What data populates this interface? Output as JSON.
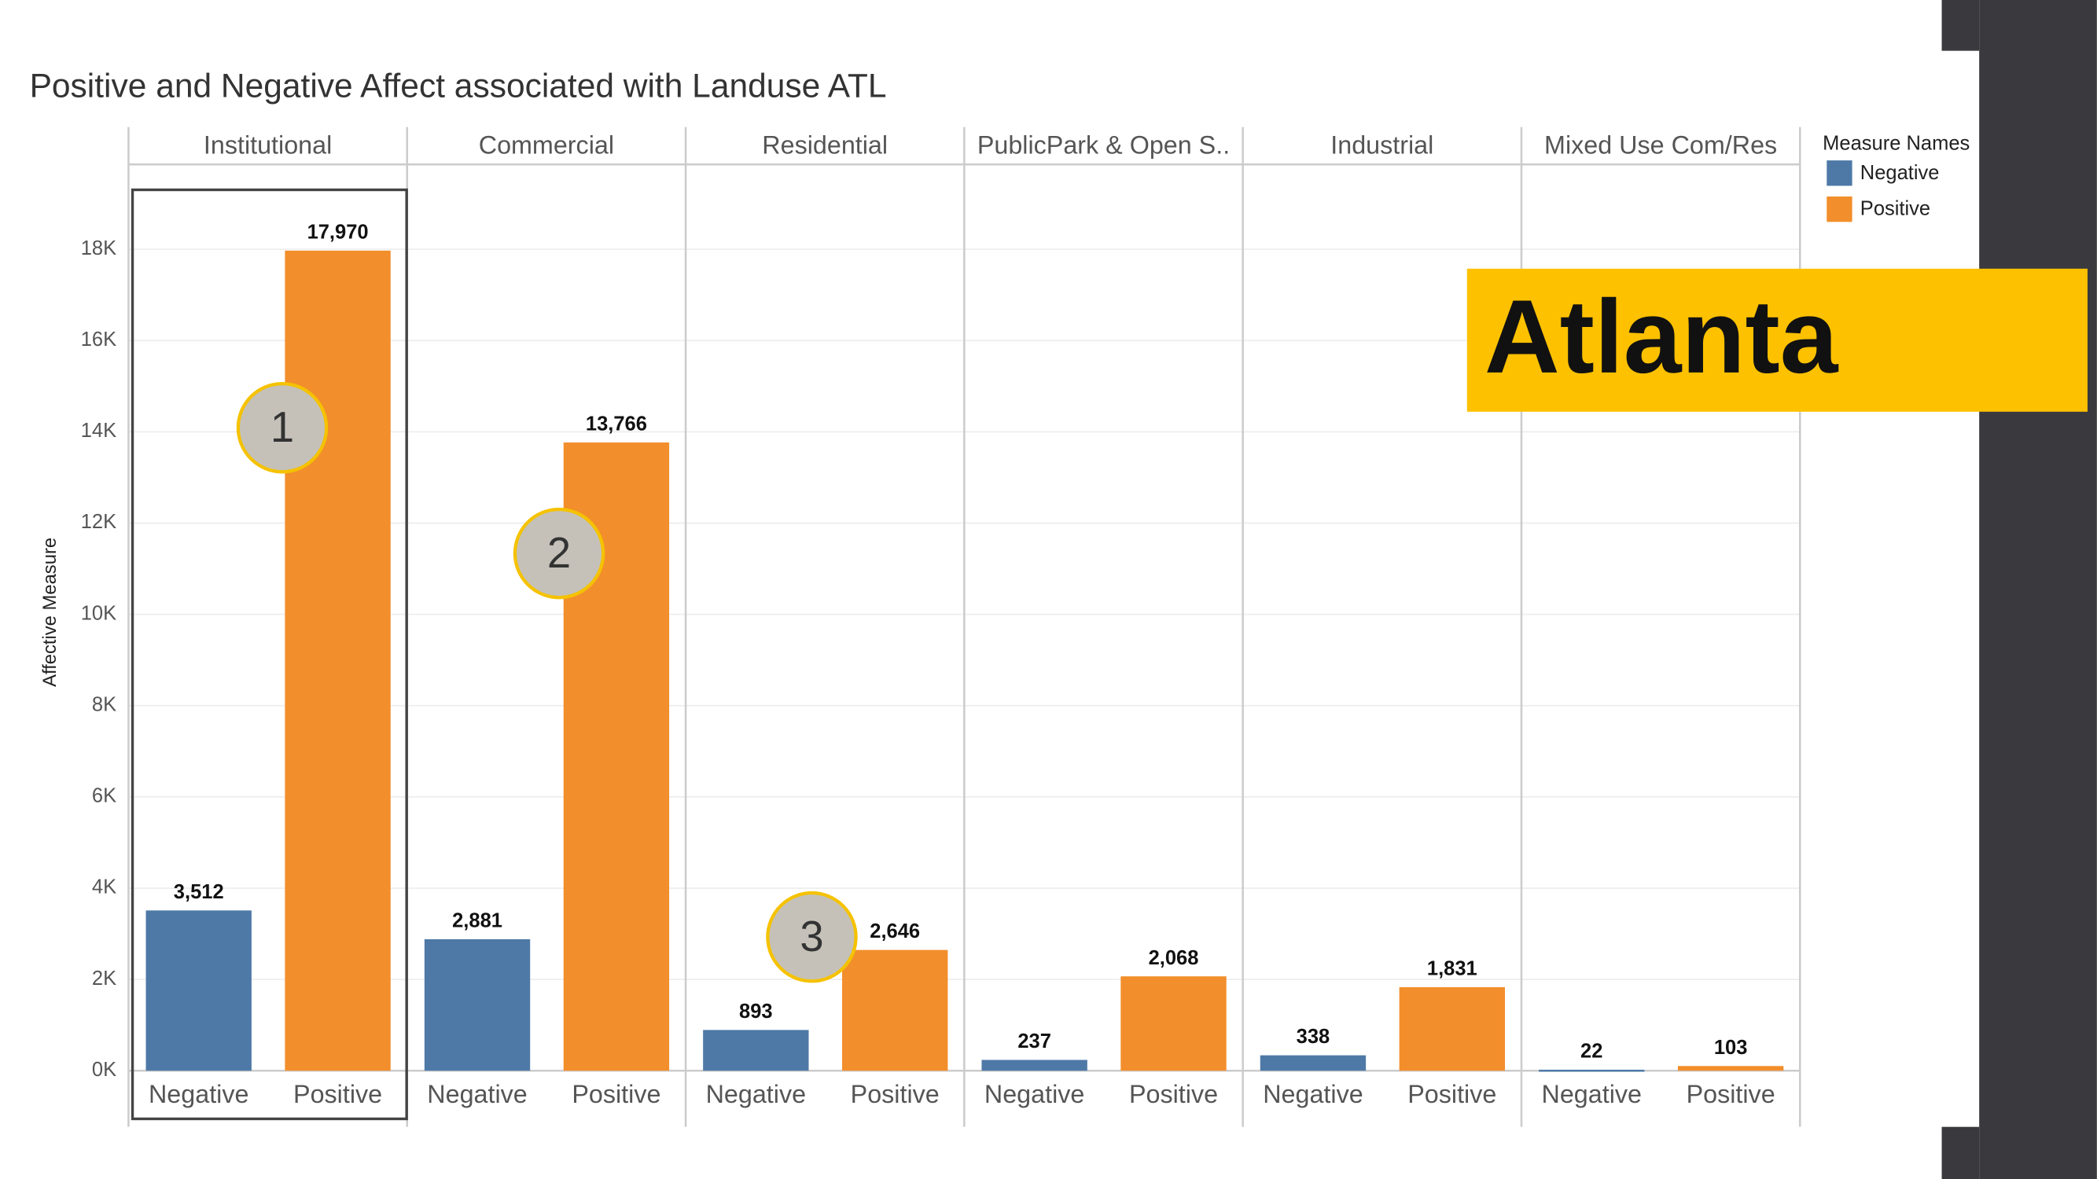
{
  "chart_data": {
    "type": "bar",
    "title": "Positive and Negative Affect associated with Landuse ATL",
    "y_label": "Affective Measure",
    "legend_title": "Measure Names",
    "categories": [
      "Institutional",
      "Commercial",
      "Residential",
      "PublicPark & Open S..",
      "Industrial",
      "Mixed Use Com/Res"
    ],
    "series": [
      {
        "name": "Negative",
        "color": "#4e79a7",
        "values": [
          3512,
          2881,
          893,
          237,
          338,
          22
        ],
        "value_labels": [
          "3,512",
          "2,881",
          "893",
          "237",
          "338",
          "22"
        ]
      },
      {
        "name": "Positive",
        "color": "#f28e2b",
        "values": [
          17970,
          13766,
          2646,
          2068,
          1831,
          103
        ],
        "value_labels": [
          "17,970",
          "13,766",
          "2,646",
          "2,068",
          "1,831",
          "103"
        ]
      }
    ],
    "ylim": [
      0,
      19800
    ],
    "yticks": [
      {
        "value": 0,
        "label": "0K"
      },
      {
        "value": 2000,
        "label": "2K"
      },
      {
        "value": 4000,
        "label": "4K"
      },
      {
        "value": 6000,
        "label": "6K"
      },
      {
        "value": 8000,
        "label": "8K"
      },
      {
        "value": 10000,
        "label": "10K"
      },
      {
        "value": 12000,
        "label": "12K"
      },
      {
        "value": 14000,
        "label": "14K"
      },
      {
        "value": 16000,
        "label": "16K"
      },
      {
        "value": 18000,
        "label": "18K"
      }
    ],
    "grid": true
  },
  "annotations": [
    "1",
    "2",
    "3"
  ],
  "banner": "Atlanta"
}
